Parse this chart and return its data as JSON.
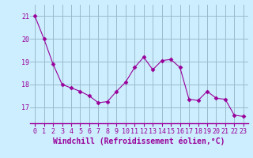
{
  "x": [
    0,
    1,
    2,
    3,
    4,
    5,
    6,
    7,
    8,
    9,
    10,
    11,
    12,
    13,
    14,
    15,
    16,
    17,
    18,
    19,
    20,
    21,
    22,
    23
  ],
  "y": [
    21.0,
    20.0,
    18.9,
    18.0,
    17.85,
    17.7,
    17.5,
    17.2,
    17.25,
    17.7,
    18.1,
    18.75,
    19.2,
    18.65,
    19.05,
    19.1,
    18.75,
    17.35,
    17.3,
    17.7,
    17.4,
    17.35,
    16.65,
    16.6
  ],
  "line_color": "#990099",
  "marker": "D",
  "marker_size": 2.5,
  "bg_color": "#cceeff",
  "grid_color": "#99bbcc",
  "xlabel": "Windchill (Refroidissement éolien,°C)",
  "xlabel_color": "#990099",
  "xlabel_fontsize": 7,
  "tick_color": "#990099",
  "tick_fontsize": 6,
  "yticks": [
    17,
    18,
    19,
    20,
    21
  ],
  "xticks": [
    0,
    1,
    2,
    3,
    4,
    5,
    6,
    7,
    8,
    9,
    10,
    11,
    12,
    13,
    14,
    15,
    16,
    17,
    18,
    19,
    20,
    21,
    22,
    23
  ],
  "ylim": [
    16.3,
    21.5
  ],
  "xlim": [
    -0.5,
    23.5
  ],
  "spine_color": "#990099"
}
